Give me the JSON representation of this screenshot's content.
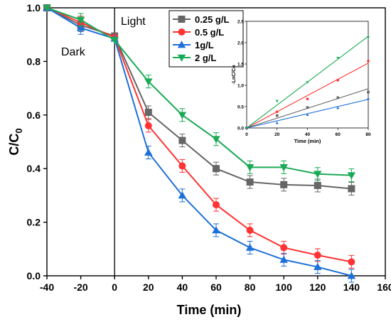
{
  "chart_data": [
    {
      "type": "line",
      "title": "",
      "xlabel": "Time (min)",
      "ylabel_main": "C/C",
      "ylabel_sub": "0",
      "xlim": [
        -40,
        160
      ],
      "ylim": [
        0.0,
        1.0
      ],
      "x_ticks": [
        "-40",
        "-20",
        "0",
        "20",
        "40",
        "60",
        "80",
        "100",
        "120",
        "140",
        "160"
      ],
      "y_ticks": [
        "0.0",
        "0.2",
        "0.4",
        "0.6",
        "0.8",
        "1.0"
      ],
      "annotations": {
        "dark": "Dark",
        "light": "Light"
      },
      "x": [
        -40,
        -20,
        0,
        20,
        40,
        60,
        80,
        100,
        120,
        140
      ],
      "legend_position": "top-center",
      "series": [
        {
          "name": "0.25 g/L",
          "color": "#666666",
          "marker": "square",
          "values": [
            1.0,
            0.935,
            0.895,
            0.61,
            0.505,
            0.4,
            0.35,
            0.34,
            0.337,
            0.325
          ]
        },
        {
          "name": "0.5 g/L",
          "color": "#ff3333",
          "marker": "circle",
          "values": [
            1.0,
            0.945,
            0.89,
            0.56,
            0.41,
            0.265,
            0.17,
            0.105,
            0.077,
            0.052
          ]
        },
        {
          "name": "1g/L",
          "color": "#1e6fd9",
          "marker": "triangle-up",
          "values": [
            1.0,
            0.925,
            0.885,
            0.46,
            0.3,
            0.17,
            0.105,
            0.06,
            0.033,
            0.0
          ]
        },
        {
          "name": "2 g/L",
          "color": "#1aaa55",
          "marker": "triangle-down",
          "values": [
            1.0,
            0.955,
            0.88,
            0.725,
            0.6,
            0.51,
            0.405,
            0.405,
            0.38,
            0.375
          ]
        }
      ]
    },
    {
      "type": "scatter",
      "title": "",
      "xlabel": "Time (min)",
      "ylabel": "-LnC/Co",
      "xlim": [
        0,
        80
      ],
      "ylim": [
        0.0,
        2.5
      ],
      "x_ticks": [
        "0",
        "20",
        "40",
        "60",
        "80"
      ],
      "y_ticks": [
        "0.0",
        "0.5",
        "1.0",
        "1.5",
        "2.0",
        "2.5"
      ],
      "x": [
        0,
        20,
        40,
        60,
        80
      ],
      "series": [
        {
          "color": "#666666",
          "marker": "square",
          "values": [
            0.0,
            0.29,
            0.48,
            0.71,
            0.84
          ],
          "fit_end": 0.92
        },
        {
          "color": "#ff3333",
          "marker": "circle",
          "values": [
            0.0,
            0.38,
            0.68,
            1.12,
            1.57
          ],
          "fit_end": 1.52
        },
        {
          "color": "#1e6fd9",
          "marker": "triangle-up",
          "values": [
            0.0,
            0.12,
            0.31,
            0.47,
            0.69
          ],
          "fit_end": 0.67
        },
        {
          "color": "#1aaa55",
          "marker": "triangle-down",
          "values": [
            0.0,
            0.63,
            1.07,
            1.64,
            2.12
          ],
          "fit_end": 2.15
        }
      ]
    }
  ]
}
